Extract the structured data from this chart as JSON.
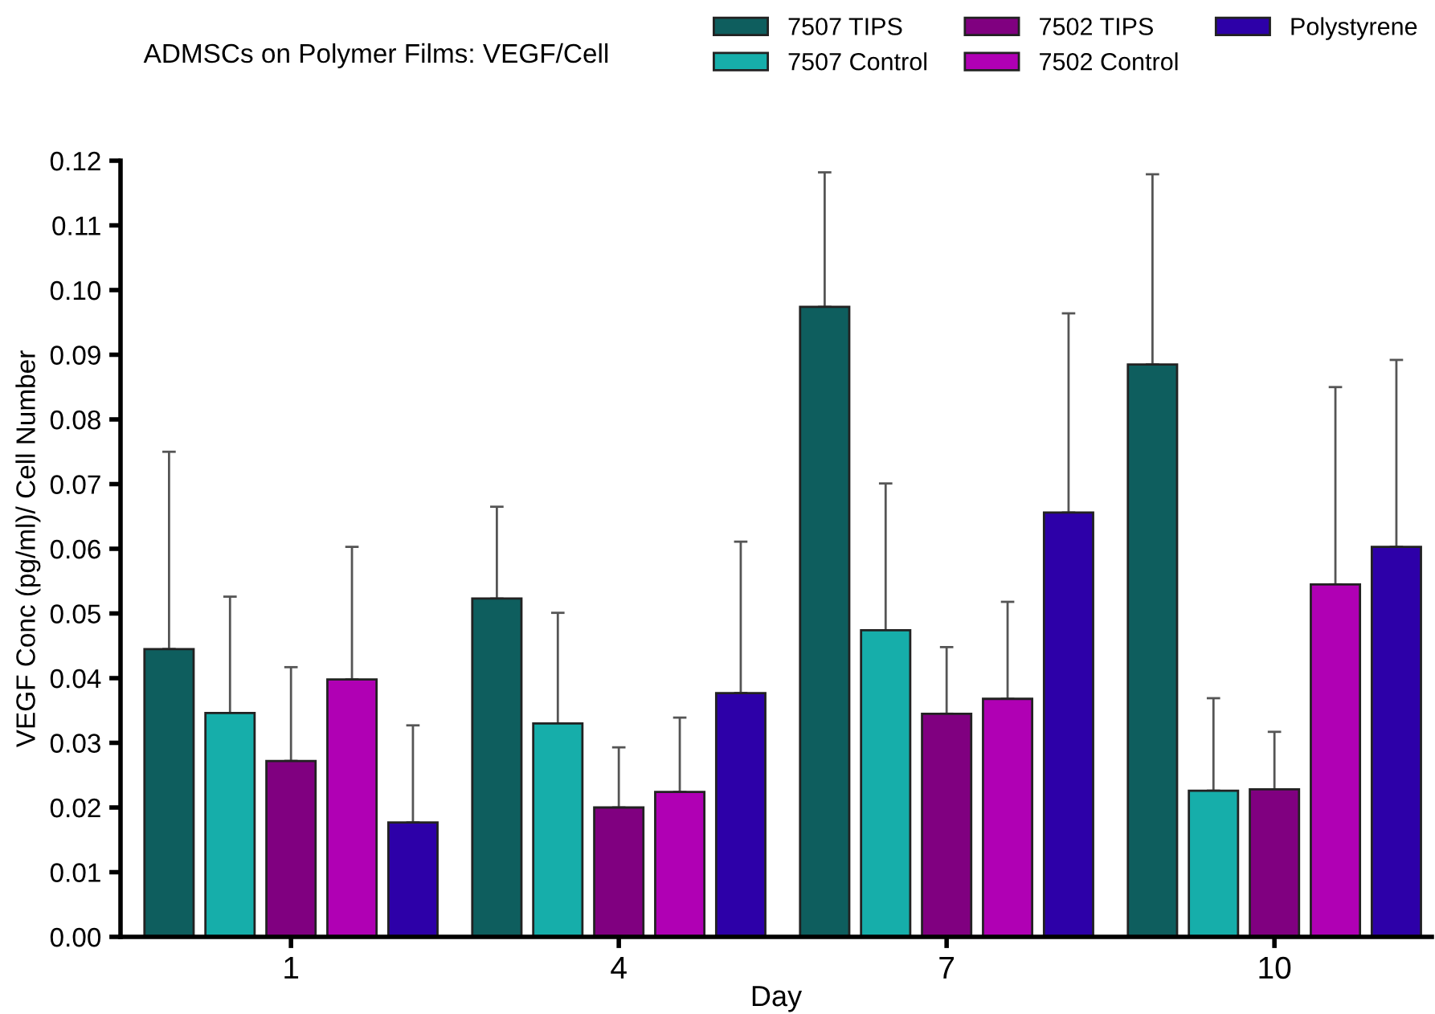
{
  "chart_data": {
    "type": "bar",
    "title": "ADMSCs on Polymer Films: VEGF/Cell",
    "xlabel": "Day",
    "ylabel": "VEGF Conc (pg/ml)/ Cell Number",
    "categories": [
      "1",
      "4",
      "7",
      "10"
    ],
    "series": [
      {
        "name": "7507 TIPS",
        "color": "#0e5e5e",
        "values": [
          0.0445,
          0.0523,
          0.0974,
          0.0885
        ],
        "errors": [
          [
            0.0445,
            0.075
          ],
          [
            0.0523,
            0.0665
          ],
          [
            0.0974,
            0.1182
          ],
          [
            0.0885,
            0.1179
          ]
        ]
      },
      {
        "name": "7507 Control",
        "color": "#16aeaa",
        "values": [
          0.0346,
          0.033,
          0.0474,
          0.0226
        ],
        "errors": [
          [
            0.0346,
            0.0526
          ],
          [
            0.033,
            0.0501
          ],
          [
            0.0474,
            0.0701
          ],
          [
            0.0226,
            0.0369
          ]
        ]
      },
      {
        "name": "7502 TIPS",
        "color": "#800080",
        "values": [
          0.0272,
          0.02,
          0.0345,
          0.0228
        ],
        "errors": [
          [
            0.0272,
            0.0417
          ],
          [
            0.02,
            0.0293
          ],
          [
            0.0345,
            0.0448
          ],
          [
            0.0228,
            0.0317
          ]
        ]
      },
      {
        "name": "7502 Control",
        "color": "#b000b4",
        "values": [
          0.0398,
          0.0224,
          0.0368,
          0.0545
        ],
        "errors": [
          [
            0.0398,
            0.0603
          ],
          [
            0.0224,
            0.0339
          ],
          [
            0.0368,
            0.0518
          ],
          [
            0.0545,
            0.085
          ]
        ]
      },
      {
        "name": "Polystyrene",
        "color": "#2d00a8",
        "values": [
          0.0177,
          0.0377,
          0.0656,
          0.0603
        ],
        "errors": [
          [
            0.0177,
            0.0327
          ],
          [
            0.0377,
            0.0611
          ],
          [
            0.0656,
            0.0964
          ],
          [
            0.0603,
            0.0892
          ]
        ]
      }
    ],
    "ylim": [
      0,
      0.12
    ],
    "yticks": [
      {
        "value": 0,
        "label": "0.00"
      },
      {
        "value": 0.01,
        "label": "0.01"
      },
      {
        "value": 0.02,
        "label": "0.02"
      },
      {
        "value": 0.03,
        "label": "0.03"
      },
      {
        "value": 0.04,
        "label": "0.04"
      },
      {
        "value": 0.05,
        "label": "0.05"
      },
      {
        "value": 0.06,
        "label": "0.06"
      },
      {
        "value": 0.07,
        "label": "0.07"
      },
      {
        "value": 0.08,
        "label": "0.08"
      },
      {
        "value": 0.09,
        "label": "0.09"
      },
      {
        "value": 0.1,
        "label": "0.10"
      },
      {
        "value": 0.11,
        "label": "0.11"
      },
      {
        "value": 0.12,
        "label": "0.12"
      }
    ],
    "grid": false,
    "legend": "top right"
  }
}
